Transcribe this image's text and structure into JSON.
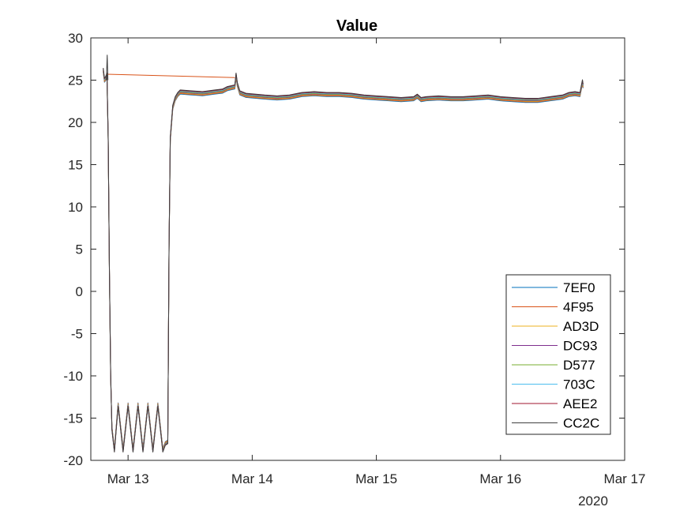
{
  "chart_data": {
    "type": "line",
    "title": "Value",
    "xlabel": "",
    "ylabel": "",
    "x_ticks": [
      "Mar 13",
      "Mar 14",
      "Mar 15",
      "Mar 16",
      "Mar 17"
    ],
    "x_secondary_label": "2020",
    "x_range_days": [
      12.7,
      17.0
    ],
    "ylim": [
      -20,
      30
    ],
    "y_ticks": [
      "-20",
      "-15",
      "-10",
      "-5",
      "0",
      "5",
      "10",
      "15",
      "20",
      "25",
      "30"
    ],
    "legend_position": "lower-right",
    "series": [
      {
        "name": "7EF0",
        "color": "#0072BD"
      },
      {
        "name": "4F95",
        "color": "#D95319"
      },
      {
        "name": "AD3D",
        "color": "#EDB120"
      },
      {
        "name": "DC93",
        "color": "#7E2F8E"
      },
      {
        "name": "D577",
        "color": "#77AC30"
      },
      {
        "name": "703C",
        "color": "#4DBEEE"
      },
      {
        "name": "AEE2",
        "color": "#A2142F"
      },
      {
        "name": "CC2C",
        "color": "#404040"
      }
    ],
    "base_curve": [
      [
        12.8,
        26.2
      ],
      [
        12.81,
        25.0
      ],
      [
        12.82,
        25.2
      ],
      [
        12.83,
        25.6
      ],
      [
        12.84,
        18.0
      ],
      [
        12.85,
        2.0
      ],
      [
        12.86,
        -10.0
      ],
      [
        12.87,
        -16.0
      ],
      [
        12.89,
        -18.6
      ],
      [
        12.92,
        -13.2
      ],
      [
        12.96,
        -18.6
      ],
      [
        13.0,
        -13.2
      ],
      [
        13.04,
        -18.6
      ],
      [
        13.08,
        -13.2
      ],
      [
        13.12,
        -18.6
      ],
      [
        13.16,
        -13.2
      ],
      [
        13.2,
        -18.6
      ],
      [
        13.24,
        -13.2
      ],
      [
        13.28,
        -18.6
      ],
      [
        13.3,
        -17.8
      ],
      [
        13.32,
        -17.6
      ],
      [
        13.33,
        5.0
      ],
      [
        13.34,
        18.0
      ],
      [
        13.36,
        21.8
      ],
      [
        13.38,
        22.8
      ],
      [
        13.4,
        23.3
      ],
      [
        13.42,
        23.6
      ],
      [
        13.5,
        23.5
      ],
      [
        13.6,
        23.4
      ],
      [
        13.7,
        23.6
      ],
      [
        13.76,
        23.7
      ],
      [
        13.8,
        24.0
      ],
      [
        13.86,
        24.2
      ],
      [
        13.87,
        25.6
      ],
      [
        13.88,
        24.5
      ],
      [
        13.9,
        23.5
      ],
      [
        13.95,
        23.2
      ],
      [
        14.1,
        23.0
      ],
      [
        14.2,
        22.9
      ],
      [
        14.3,
        23.0
      ],
      [
        14.4,
        23.3
      ],
      [
        14.5,
        23.4
      ],
      [
        14.6,
        23.3
      ],
      [
        14.7,
        23.3
      ],
      [
        14.8,
        23.2
      ],
      [
        14.9,
        23.0
      ],
      [
        15.0,
        22.9
      ],
      [
        15.1,
        22.8
      ],
      [
        15.2,
        22.7
      ],
      [
        15.3,
        22.8
      ],
      [
        15.33,
        23.1
      ],
      [
        15.36,
        22.7
      ],
      [
        15.4,
        22.8
      ],
      [
        15.5,
        22.9
      ],
      [
        15.6,
        22.8
      ],
      [
        15.7,
        22.8
      ],
      [
        15.8,
        22.9
      ],
      [
        15.9,
        23.0
      ],
      [
        16.0,
        22.8
      ],
      [
        16.1,
        22.7
      ],
      [
        16.2,
        22.6
      ],
      [
        16.3,
        22.6
      ],
      [
        16.4,
        22.8
      ],
      [
        16.5,
        23.0
      ],
      [
        16.55,
        23.3
      ],
      [
        16.6,
        23.4
      ],
      [
        16.64,
        23.3
      ],
      [
        16.66,
        24.8
      ],
      [
        16.665,
        24.3
      ]
    ],
    "gap_segment": [
      [
        12.83,
        25.7
      ],
      [
        13.86,
        25.3
      ]
    ],
    "start_spike": [
      [
        12.825,
        25.0
      ],
      [
        12.832,
        28.0
      ],
      [
        12.838,
        25.0
      ]
    ]
  }
}
